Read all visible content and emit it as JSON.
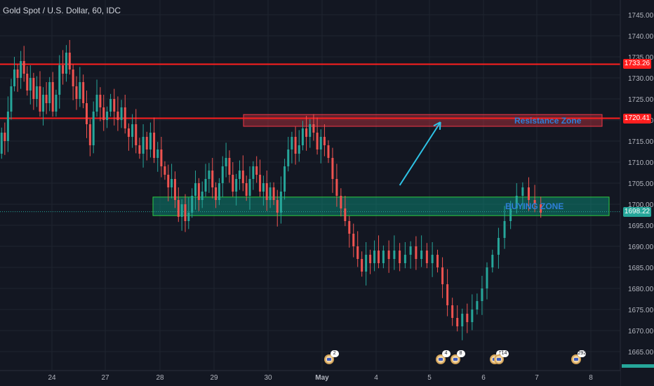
{
  "header": {
    "title": "Gold Spot / U.S. Dollar, 60, IDC"
  },
  "zones": {
    "resistance": {
      "label": "Resistance Zone",
      "low": 1718.5,
      "high": 1721.3,
      "color": "#f23645",
      "text_color": "#2f7fd8"
    },
    "buying": {
      "label": "BUYING ZONE",
      "low": 1697.3,
      "high": 1701.7,
      "color": "#089981",
      "text_color": "#2f7fd8"
    }
  },
  "levels": [
    {
      "name": "resistance-line-upper",
      "price": 1733.26,
      "label": "1733.26",
      "color": "#ff1f1f"
    },
    {
      "name": "resistance-line-lower",
      "price": 1720.41,
      "label": "1720.41",
      "color": "#ff1f1f"
    }
  ],
  "current_price": {
    "price": 1698.22,
    "label": "1698.22",
    "color": "#26a69a"
  },
  "arrow": {
    "from": {
      "date_index": 6.55,
      "price": 1704.5
    },
    "to": {
      "date_index": 7.17,
      "price": 1719.5
    },
    "color": "#2ec3e6"
  },
  "events": [
    {
      "date_index": 5.7,
      "count": "2"
    },
    {
      "date_index": 7.75,
      "count": "4"
    },
    {
      "date_index": 8.02,
      "count": "8"
    },
    {
      "date_index": 8.75,
      "count": "5"
    },
    {
      "date_index": 8.82,
      "count": "14"
    },
    {
      "date_index": 10.25,
      "count": "292"
    },
    {
      "date_index": 11.45,
      "count": ""
    }
  ],
  "colors": {
    "background": "#131722",
    "grid": "#1f2430",
    "up": "#26a69a",
    "down": "#ef5350",
    "axis_text": "#b2b5be"
  },
  "chart_data": {
    "type": "candlestick",
    "title": "Gold Spot / U.S. Dollar, 60, IDC",
    "x_ticks": [
      "24",
      "27",
      "28",
      "29",
      "30",
      "May",
      "4",
      "5",
      "6",
      "7",
      "8"
    ],
    "y_ticks": [
      1665,
      1670,
      1675,
      1680,
      1685,
      1690,
      1695,
      1700,
      1705,
      1710,
      1715,
      1720,
      1725,
      1730,
      1735,
      1740,
      1745
    ],
    "y_tick_labels": [
      "1665.00",
      "1670.00",
      "1675.00",
      "1680.00",
      "1685.00",
      "1690.00",
      "1695.00",
      "1700.00",
      "1705.00",
      "1710.00",
      "1715.00",
      "1720.00",
      "1725.00",
      "1730.00",
      "1735.00",
      "1740.00",
      "1745.00"
    ],
    "ylim": [
      1661,
      1751
    ],
    "grid": true,
    "series": [
      {
        "key": "24",
        "day": 0,
        "start": 1712,
        "end": 1722,
        "min": 1708,
        "max": 1738,
        "path": [
          1712,
          1717,
          1715,
          1722,
          1728,
          1732,
          1730,
          1734,
          1731,
          1727,
          1730,
          1725,
          1728,
          1722,
          1726,
          1724,
          1729,
          1722
        ]
      },
      {
        "key": "27",
        "day": 1,
        "start": 1722,
        "end": 1722,
        "min": 1709,
        "max": 1738,
        "path": [
          1722,
          1726,
          1733,
          1731,
          1736,
          1732,
          1728,
          1725,
          1729,
          1724,
          1719,
          1714,
          1722,
          1726,
          1723,
          1720,
          1722
        ]
      },
      {
        "key": "28",
        "day": 2,
        "start": 1722,
        "end": 1709,
        "min": 1707,
        "max": 1724,
        "path": [
          1722,
          1725,
          1722,
          1720,
          1723,
          1718,
          1716,
          1719,
          1714,
          1712,
          1716,
          1713,
          1717,
          1711,
          1713,
          1709
        ]
      },
      {
        "key": "29",
        "day": 3,
        "start": 1709,
        "end": 1701,
        "min": 1694,
        "max": 1714,
        "path": [
          1709,
          1707,
          1704,
          1706,
          1701,
          1697,
          1700,
          1696,
          1698,
          1702,
          1705,
          1701,
          1703,
          1706,
          1708,
          1704,
          1701
        ]
      },
      {
        "key": "30",
        "day": 4,
        "start": 1701,
        "end": 1704,
        "min": 1694,
        "max": 1713,
        "path": [
          1701,
          1705,
          1709,
          1711,
          1707,
          1703,
          1706,
          1708,
          1705,
          1702,
          1706,
          1709,
          1707,
          1703,
          1705,
          1701,
          1704
        ]
      },
      {
        "key": "30b",
        "day": 5,
        "start": 1704,
        "end": 1714,
        "min": 1697,
        "max": 1721,
        "path": [
          1704,
          1701,
          1698,
          1703,
          1709,
          1713,
          1716,
          1712,
          1714,
          1718,
          1716,
          1719,
          1717,
          1713,
          1716,
          1714
        ]
      },
      {
        "key": "30c",
        "day": 6,
        "start": 1714,
        "end": 1686,
        "min": 1681,
        "max": 1715,
        "path": [
          1714,
          1711,
          1706,
          1702,
          1699,
          1696,
          1693,
          1690,
          1687,
          1684,
          1688,
          1686,
          1689,
          1686
        ]
      },
      {
        "key": "May",
        "day": 7,
        "start": 1686,
        "end": 1688,
        "min": 1682,
        "max": 1691,
        "path": [
          1686,
          1689,
          1687,
          1689,
          1686,
          1688,
          1690,
          1687,
          1689,
          1686,
          1688
        ]
      },
      {
        "key": "May-b",
        "day": 8,
        "start": 1688,
        "end": 1685,
        "min": 1669,
        "max": 1691,
        "path": [
          1688,
          1685,
          1681,
          1676,
          1673,
          1671,
          1674,
          1672,
          1675,
          1677,
          1680,
          1685
        ]
      },
      {
        "key": "4",
        "day": 9,
        "start": 1685,
        "end": 1698,
        "min": 1682,
        "max": 1706,
        "path": [
          1685,
          1688,
          1692,
          1696,
          1699,
          1702,
          1704,
          1701,
          1700,
          1698
        ]
      }
    ]
  }
}
